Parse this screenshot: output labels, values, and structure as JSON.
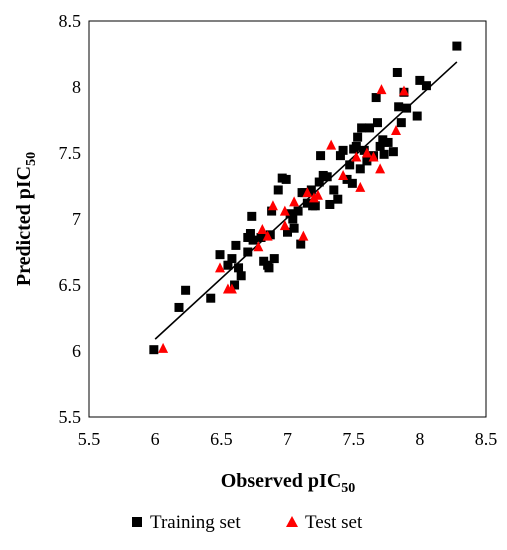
{
  "chart_data": {
    "type": "scatter",
    "xlabel": "Observed pIC",
    "xlabel_sub": "50",
    "ylabel": "Predicted pIC",
    "ylabel_sub": "50",
    "xlim": [
      5.5,
      8.5
    ],
    "ylim": [
      5.5,
      8.5
    ],
    "xticks": [
      "5.5",
      "6",
      "6.5",
      "7",
      "7.5",
      "8",
      "8.5"
    ],
    "yticks": [
      "5.5",
      "6",
      "6.5",
      "7",
      "7.5",
      "8",
      "8.5"
    ],
    "grid": false,
    "legend_position": "bottom",
    "trendline": {
      "x": [
        6.0,
        8.28
      ],
      "y": [
        6.09,
        8.19
      ],
      "color": "#000000"
    },
    "series": [
      {
        "name": "Training set",
        "marker": "square",
        "color": "#000000",
        "points": [
          [
            5.99,
            6.01
          ],
          [
            6.18,
            6.33
          ],
          [
            6.23,
            6.46
          ],
          [
            6.42,
            6.4
          ],
          [
            6.49,
            6.73
          ],
          [
            6.55,
            6.65
          ],
          [
            6.58,
            6.7
          ],
          [
            6.61,
            6.8
          ],
          [
            6.63,
            6.63
          ],
          [
            6.6,
            6.5
          ],
          [
            6.65,
            6.57
          ],
          [
            6.7,
            6.75
          ],
          [
            6.7,
            6.86
          ],
          [
            6.72,
            6.89
          ],
          [
            6.74,
            6.84
          ],
          [
            6.73,
            7.02
          ],
          [
            6.8,
            6.86
          ],
          [
            6.82,
            6.68
          ],
          [
            6.85,
            6.65
          ],
          [
            6.86,
            6.63
          ],
          [
            6.87,
            6.88
          ],
          [
            6.88,
            7.06
          ],
          [
            6.9,
            6.7
          ],
          [
            6.93,
            7.22
          ],
          [
            6.96,
            7.31
          ],
          [
            6.99,
            7.3
          ],
          [
            7.0,
            6.9
          ],
          [
            7.02,
            7.04
          ],
          [
            7.04,
            7.0
          ],
          [
            7.05,
            6.93
          ],
          [
            7.08,
            7.06
          ],
          [
            7.1,
            6.81
          ],
          [
            7.11,
            7.2
          ],
          [
            7.13,
            7.2
          ],
          [
            7.15,
            7.12
          ],
          [
            7.18,
            7.22
          ],
          [
            7.19,
            7.1
          ],
          [
            7.21,
            7.1
          ],
          [
            7.24,
            7.28
          ],
          [
            7.25,
            7.48
          ],
          [
            7.27,
            7.33
          ],
          [
            7.3,
            7.32
          ],
          [
            7.32,
            7.11
          ],
          [
            7.35,
            7.22
          ],
          [
            7.38,
            7.15
          ],
          [
            7.4,
            7.48
          ],
          [
            7.42,
            7.52
          ],
          [
            7.45,
            7.3
          ],
          [
            7.47,
            7.41
          ],
          [
            7.49,
            7.27
          ],
          [
            7.5,
            7.53
          ],
          [
            7.52,
            7.55
          ],
          [
            7.53,
            7.62
          ],
          [
            7.55,
            7.38
          ],
          [
            7.56,
            7.69
          ],
          [
            7.58,
            7.52
          ],
          [
            7.6,
            7.44
          ],
          [
            7.62,
            7.69
          ],
          [
            7.65,
            7.48
          ],
          [
            7.67,
            7.92
          ],
          [
            7.68,
            7.73
          ],
          [
            7.7,
            7.55
          ],
          [
            7.72,
            7.6
          ],
          [
            7.73,
            7.49
          ],
          [
            7.76,
            7.58
          ],
          [
            7.8,
            7.51
          ],
          [
            7.83,
            8.11
          ],
          [
            7.84,
            7.85
          ],
          [
            7.86,
            7.73
          ],
          [
            7.88,
            7.96
          ],
          [
            7.9,
            7.84
          ],
          [
            7.98,
            7.78
          ],
          [
            8.0,
            8.05
          ],
          [
            8.05,
            8.01
          ],
          [
            8.28,
            8.31
          ]
        ]
      },
      {
        "name": "Test set",
        "marker": "triangle",
        "color": "#ff0000",
        "points": [
          [
            6.06,
            6.02
          ],
          [
            6.49,
            6.63
          ],
          [
            6.55,
            6.47
          ],
          [
            6.58,
            6.47
          ],
          [
            6.78,
            6.79
          ],
          [
            6.81,
            6.92
          ],
          [
            6.85,
            6.87
          ],
          [
            6.89,
            7.1
          ],
          [
            6.98,
            6.95
          ],
          [
            6.98,
            7.06
          ],
          [
            7.05,
            7.13
          ],
          [
            7.12,
            6.87
          ],
          [
            7.15,
            7.2
          ],
          [
            7.2,
            7.16
          ],
          [
            7.23,
            7.18
          ],
          [
            7.33,
            7.56
          ],
          [
            7.42,
            7.33
          ],
          [
            7.52,
            7.47
          ],
          [
            7.55,
            7.24
          ],
          [
            7.6,
            7.5
          ],
          [
            7.65,
            7.47
          ],
          [
            7.7,
            7.38
          ],
          [
            7.71,
            7.98
          ],
          [
            7.82,
            7.67
          ],
          [
            7.88,
            7.97
          ]
        ]
      }
    ]
  }
}
